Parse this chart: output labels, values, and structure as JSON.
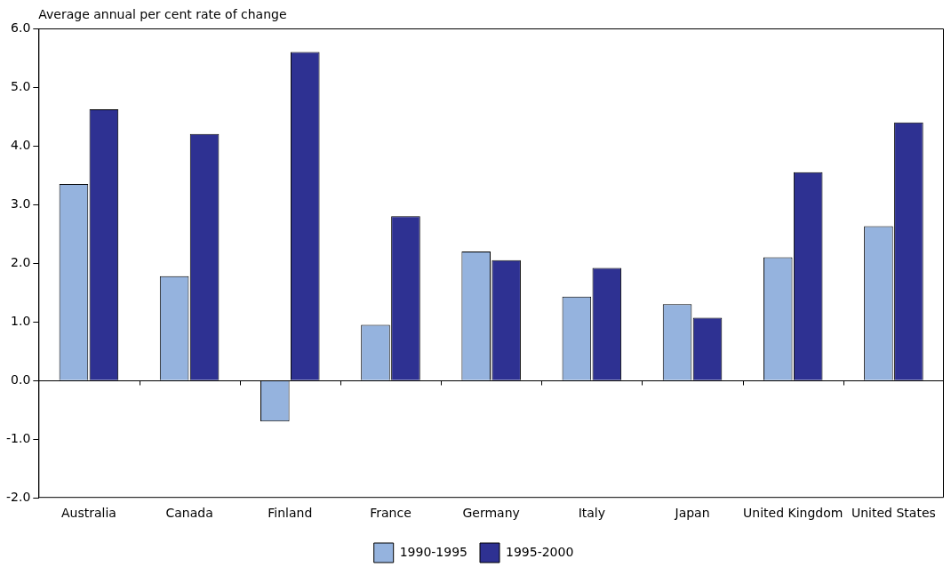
{
  "chart_data": {
    "type": "bar",
    "ylabel": "Average annual per cent rate of change",
    "categories": [
      "Australia",
      "Canada",
      "Finland",
      "France",
      "Germany",
      "Italy",
      "Japan",
      "United Kingdom",
      "United States"
    ],
    "series": [
      {
        "name": "1990-1995",
        "color": "#95b3de",
        "values": [
          3.35,
          1.78,
          -0.7,
          0.95,
          2.2,
          1.43,
          1.3,
          2.1,
          2.63
        ]
      },
      {
        "name": "1995-2000",
        "color": "#2e3192",
        "values": [
          4.62,
          4.2,
          5.6,
          2.8,
          2.05,
          1.92,
          1.07,
          3.55,
          4.4
        ]
      }
    ],
    "ylim": [
      -2,
      6
    ],
    "yticks": [
      {
        "value": -2,
        "label": "-2.0"
      },
      {
        "value": -1,
        "label": "-1.0"
      },
      {
        "value": 0,
        "label": "0.0"
      },
      {
        "value": 1,
        "label": "1.0"
      },
      {
        "value": 2,
        "label": "2.0"
      },
      {
        "value": 3,
        "label": "3.0"
      },
      {
        "value": 4,
        "label": "4.0"
      },
      {
        "value": 5,
        "label": "5.0"
      },
      {
        "value": 6,
        "label": "6.0"
      }
    ],
    "ref_lines": [
      {
        "axis": "y",
        "value": 0,
        "color": "#000000"
      }
    ],
    "grid": false,
    "legend": "bottom"
  }
}
